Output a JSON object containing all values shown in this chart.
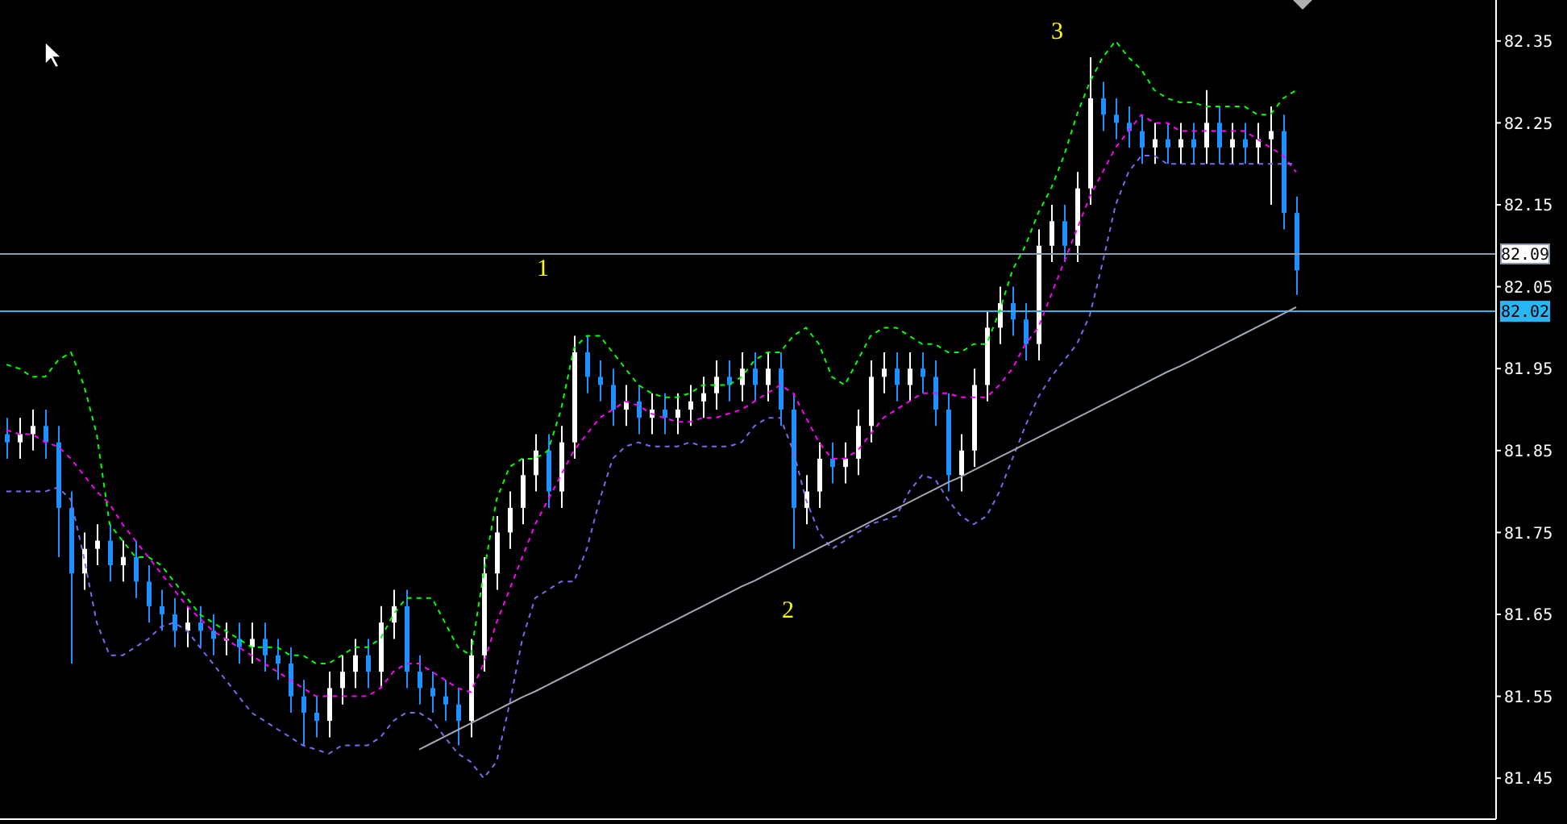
{
  "chart_data": {
    "type": "candlestick",
    "categories": [
      null,
      null,
      null,
      null,
      null,
      null,
      null,
      null,
      null,
      null,
      null,
      null,
      null,
      null,
      null,
      null,
      null,
      null,
      null,
      null,
      null,
      null,
      null,
      null,
      null,
      null,
      null,
      null,
      null,
      null,
      null,
      null,
      null,
      null,
      null,
      null,
      null,
      null,
      null,
      null,
      null,
      null,
      null,
      null,
      null,
      null,
      null,
      null,
      null,
      null,
      null,
      null,
      null,
      null,
      null,
      null,
      null,
      null,
      null,
      null,
      null,
      null,
      null,
      null,
      null,
      null,
      null,
      null,
      null,
      null,
      null,
      null,
      null,
      null,
      null,
      null,
      null,
      null,
      null,
      null,
      null,
      null,
      null,
      null,
      null,
      null,
      null,
      null,
      null,
      null,
      null,
      null,
      null,
      null,
      null,
      null,
      null,
      null,
      null,
      null,
      null
    ],
    "ohlc": [
      [
        81.87,
        81.89,
        81.84,
        81.86
      ],
      [
        81.86,
        81.89,
        81.84,
        81.87
      ],
      [
        81.87,
        81.9,
        81.85,
        81.88
      ],
      [
        81.88,
        81.9,
        81.84,
        81.86
      ],
      [
        81.86,
        81.88,
        81.72,
        81.78
      ],
      [
        81.78,
        81.8,
        81.59,
        81.7
      ],
      [
        81.7,
        81.75,
        81.68,
        81.73
      ],
      [
        81.73,
        81.76,
        81.71,
        81.74
      ],
      [
        81.74,
        81.76,
        81.69,
        81.71
      ],
      [
        81.71,
        81.74,
        81.69,
        81.72
      ],
      [
        81.72,
        81.74,
        81.67,
        81.69
      ],
      [
        81.69,
        81.71,
        81.64,
        81.66
      ],
      [
        81.66,
        81.68,
        81.63,
        81.65
      ],
      [
        81.65,
        81.67,
        81.61,
        81.63
      ],
      [
        81.63,
        81.66,
        81.61,
        81.64
      ],
      [
        81.64,
        81.66,
        81.61,
        81.63
      ],
      [
        81.63,
        81.65,
        81.6,
        81.62
      ],
      [
        81.62,
        81.64,
        81.6,
        81.62
      ],
      [
        81.62,
        81.64,
        81.59,
        81.61
      ],
      [
        81.61,
        81.64,
        81.59,
        81.62
      ],
      [
        81.62,
        81.64,
        81.58,
        81.6
      ],
      [
        81.6,
        81.62,
        81.57,
        81.59
      ],
      [
        81.59,
        81.61,
        81.53,
        81.55
      ],
      [
        81.55,
        81.57,
        81.49,
        81.53
      ],
      [
        81.53,
        81.55,
        81.5,
        81.52
      ],
      [
        81.52,
        81.58,
        81.5,
        81.56
      ],
      [
        81.56,
        81.6,
        81.54,
        81.58
      ],
      [
        81.58,
        81.62,
        81.56,
        81.6
      ],
      [
        81.6,
        81.62,
        81.56,
        81.58
      ],
      [
        81.58,
        81.66,
        81.56,
        81.64
      ],
      [
        81.64,
        81.68,
        81.62,
        81.66
      ],
      [
        81.66,
        81.68,
        81.56,
        81.58
      ],
      [
        81.58,
        81.6,
        81.54,
        81.56
      ],
      [
        81.56,
        81.58,
        81.53,
        81.55
      ],
      [
        81.55,
        81.57,
        81.52,
        81.54
      ],
      [
        81.54,
        81.56,
        81.49,
        81.52
      ],
      [
        81.52,
        81.62,
        81.5,
        81.6
      ],
      [
        81.6,
        81.72,
        81.58,
        81.7
      ],
      [
        81.7,
        81.77,
        81.68,
        81.75
      ],
      [
        81.75,
        81.8,
        81.73,
        81.78
      ],
      [
        81.78,
        81.84,
        81.76,
        81.82
      ],
      [
        81.82,
        81.87,
        81.8,
        81.85
      ],
      [
        81.85,
        81.87,
        81.78,
        81.8
      ],
      [
        81.8,
        81.88,
        81.78,
        81.86
      ],
      [
        81.86,
        81.99,
        81.84,
        81.97
      ],
      [
        81.97,
        81.99,
        81.92,
        81.94
      ],
      [
        81.94,
        81.96,
        81.91,
        81.93
      ],
      [
        81.93,
        81.95,
        81.88,
        81.9
      ],
      [
        81.9,
        81.93,
        81.88,
        81.91
      ],
      [
        81.91,
        81.93,
        81.87,
        81.89
      ],
      [
        81.89,
        81.92,
        81.87,
        81.9
      ],
      [
        81.9,
        81.92,
        81.87,
        81.89
      ],
      [
        81.89,
        81.92,
        81.87,
        81.9
      ],
      [
        81.9,
        81.93,
        81.88,
        81.91
      ],
      [
        81.91,
        81.94,
        81.89,
        81.92
      ],
      [
        81.92,
        81.96,
        81.9,
        81.94
      ],
      [
        81.94,
        81.96,
        81.91,
        81.93
      ],
      [
        81.93,
        81.97,
        81.91,
        81.95
      ],
      [
        81.95,
        81.97,
        81.91,
        81.93
      ],
      [
        81.93,
        81.97,
        81.91,
        81.95
      ],
      [
        81.95,
        81.97,
        81.88,
        81.9
      ],
      [
        81.9,
        81.92,
        81.73,
        81.78
      ],
      [
        81.78,
        81.82,
        81.76,
        81.8
      ],
      [
        81.8,
        81.86,
        81.78,
        81.84
      ],
      [
        81.84,
        81.86,
        81.81,
        81.83
      ],
      [
        81.83,
        81.86,
        81.81,
        81.84
      ],
      [
        81.84,
        81.9,
        81.82,
        81.88
      ],
      [
        81.88,
        81.96,
        81.86,
        81.94
      ],
      [
        81.94,
        81.97,
        81.92,
        81.95
      ],
      [
        81.95,
        81.97,
        81.91,
        81.93
      ],
      [
        81.93,
        81.97,
        81.91,
        81.95
      ],
      [
        81.95,
        81.97,
        81.92,
        81.94
      ],
      [
        81.94,
        81.96,
        81.88,
        81.9
      ],
      [
        81.9,
        81.92,
        81.8,
        81.82
      ],
      [
        81.82,
        81.87,
        81.8,
        81.85
      ],
      [
        81.85,
        81.95,
        81.83,
        81.93
      ],
      [
        81.93,
        82.02,
        81.91,
        82.0
      ],
      [
        82.0,
        82.05,
        81.98,
        82.03
      ],
      [
        82.03,
        82.05,
        81.99,
        82.01
      ],
      [
        82.01,
        82.03,
        81.96,
        81.98
      ],
      [
        81.98,
        82.12,
        81.96,
        82.1
      ],
      [
        82.1,
        82.15,
        82.08,
        82.13
      ],
      [
        82.13,
        82.15,
        82.08,
        82.1
      ],
      [
        82.1,
        82.19,
        82.08,
        82.17
      ],
      [
        82.17,
        82.33,
        82.15,
        82.28
      ],
      [
        82.28,
        82.3,
        82.24,
        82.26
      ],
      [
        82.26,
        82.28,
        82.23,
        82.25
      ],
      [
        82.25,
        82.27,
        82.22,
        82.24
      ],
      [
        82.24,
        82.26,
        82.2,
        82.22
      ],
      [
        82.22,
        82.25,
        82.2,
        82.23
      ],
      [
        82.23,
        82.25,
        82.2,
        82.22
      ],
      [
        82.22,
        82.25,
        82.2,
        82.23
      ],
      [
        82.23,
        82.25,
        82.2,
        82.22
      ],
      [
        82.22,
        82.29,
        82.2,
        82.25
      ],
      [
        82.25,
        82.27,
        82.2,
        82.22
      ],
      [
        82.22,
        82.25,
        82.2,
        82.23
      ],
      [
        82.23,
        82.25,
        82.2,
        82.22
      ],
      [
        82.22,
        82.25,
        82.2,
        82.23
      ],
      [
        82.23,
        82.27,
        82.15,
        82.24
      ],
      [
        82.24,
        82.26,
        82.12,
        82.14
      ],
      [
        82.14,
        82.16,
        82.04,
        82.07
      ]
    ],
    "series": [
      {
        "type": "line",
        "color": "#00ff00",
        "line_style": "dashed",
        "values": [
          81.955,
          81.95,
          81.94,
          81.94,
          81.96,
          81.97,
          81.93,
          81.87,
          81.76,
          81.74,
          81.72,
          81.72,
          81.71,
          81.69,
          81.67,
          81.65,
          81.64,
          81.63,
          81.62,
          81.61,
          81.61,
          81.61,
          81.6,
          81.6,
          81.59,
          81.59,
          81.6,
          81.61,
          81.61,
          81.62,
          81.65,
          81.67,
          81.67,
          81.67,
          81.64,
          81.61,
          81.6,
          81.7,
          81.79,
          81.83,
          81.84,
          81.84,
          81.85,
          81.9,
          81.975,
          81.99,
          81.99,
          81.97,
          81.95,
          81.93,
          81.92,
          81.915,
          81.915,
          81.92,
          81.93,
          81.93,
          81.93,
          81.94,
          81.96,
          81.97,
          81.97,
          81.99,
          82.0,
          81.98,
          81.94,
          81.93,
          81.96,
          81.99,
          82.0,
          82.0,
          81.99,
          81.98,
          81.98,
          81.97,
          81.97,
          81.98,
          81.98,
          82.02,
          82.07,
          82.1,
          82.14,
          82.17,
          82.21,
          82.26,
          82.3,
          82.33,
          82.35,
          82.33,
          82.315,
          82.29,
          82.28,
          82.275,
          82.275,
          82.27,
          82.27,
          82.27,
          82.27,
          82.26,
          82.26,
          82.28,
          82.29
        ]
      },
      {
        "type": "line",
        "color": "#ff00ff",
        "line_style": "dashed",
        "values": [
          81.875,
          81.87,
          81.87,
          81.86,
          81.855,
          81.84,
          81.82,
          81.8,
          81.785,
          81.76,
          81.74,
          81.72,
          81.7,
          81.68,
          81.66,
          81.645,
          81.63,
          81.62,
          81.61,
          81.6,
          81.59,
          81.58,
          81.57,
          81.56,
          81.55,
          81.55,
          81.55,
          81.55,
          81.55,
          81.56,
          81.58,
          81.59,
          81.59,
          81.58,
          81.57,
          81.56,
          81.555,
          81.59,
          81.64,
          81.68,
          81.72,
          81.76,
          81.79,
          81.82,
          81.85,
          81.87,
          81.89,
          81.9,
          81.91,
          81.905,
          81.895,
          81.89,
          81.885,
          81.885,
          81.89,
          81.89,
          81.895,
          81.9,
          81.91,
          81.92,
          81.93,
          81.92,
          81.89,
          81.86,
          81.84,
          81.84,
          81.85,
          81.87,
          81.89,
          81.9,
          81.91,
          81.92,
          81.92,
          81.92,
          81.915,
          81.915,
          81.915,
          81.93,
          81.95,
          81.98,
          82.0,
          82.04,
          82.08,
          82.12,
          82.16,
          82.19,
          82.22,
          82.24,
          82.26,
          82.25,
          82.25,
          82.24,
          82.24,
          82.24,
          82.24,
          82.24,
          82.24,
          82.23,
          82.22,
          82.21,
          82.19
        ]
      },
      {
        "type": "line",
        "color": "#7b68ee",
        "line_style": "dashed",
        "values": [
          81.8,
          81.8,
          81.8,
          81.8,
          81.805,
          81.79,
          81.72,
          81.64,
          81.6,
          81.6,
          81.61,
          81.62,
          81.635,
          81.64,
          81.63,
          81.61,
          81.59,
          81.57,
          81.55,
          81.53,
          81.52,
          81.51,
          81.5,
          81.49,
          81.485,
          81.48,
          81.49,
          81.49,
          81.49,
          81.5,
          81.52,
          81.53,
          81.53,
          81.52,
          81.5,
          81.48,
          81.47,
          81.45,
          81.47,
          81.54,
          81.62,
          81.67,
          81.68,
          81.69,
          81.69,
          81.73,
          81.79,
          81.84,
          81.855,
          81.86,
          81.855,
          81.855,
          81.855,
          81.86,
          81.855,
          81.855,
          81.855,
          81.86,
          81.88,
          81.89,
          81.89,
          81.85,
          81.79,
          81.75,
          81.73,
          81.74,
          81.75,
          81.76,
          81.765,
          81.77,
          81.8,
          81.82,
          81.815,
          81.79,
          81.77,
          81.76,
          81.77,
          81.8,
          81.84,
          81.88,
          81.915,
          81.94,
          81.96,
          81.98,
          82.015,
          82.08,
          82.15,
          82.19,
          82.21,
          82.21,
          82.2,
          82.2,
          82.2,
          82.2,
          82.2,
          82.2,
          82.2,
          82.2,
          82.2,
          82.2,
          82.2
        ]
      },
      {
        "type": "line",
        "color": "#a0a8b8",
        "line_style": "solid",
        "values": [
          null,
          null,
          null,
          null,
          null,
          null,
          null,
          null,
          null,
          null,
          null,
          null,
          null,
          null,
          null,
          null,
          null,
          null,
          null,
          null,
          null,
          null,
          null,
          null,
          null,
          null,
          null,
          null,
          null,
          null,
          null,
          null,
          81.485,
          81.493,
          81.501,
          81.509,
          81.517,
          81.525,
          81.533,
          81.541,
          81.549,
          81.556,
          81.564,
          81.572,
          81.58,
          81.588,
          81.596,
          81.604,
          81.612,
          81.62,
          81.628,
          81.636,
          81.644,
          81.652,
          81.66,
          81.668,
          81.676,
          81.684,
          81.691,
          81.699,
          81.707,
          81.715,
          81.723,
          81.731,
          81.739,
          81.747,
          81.755,
          81.763,
          81.771,
          81.779,
          81.787,
          81.795,
          81.803,
          81.811,
          81.818,
          81.826,
          81.834,
          81.842,
          81.85,
          81.858,
          81.866,
          81.874,
          81.882,
          81.89,
          81.898,
          81.906,
          81.914,
          81.922,
          81.93,
          81.938,
          81.946,
          81.953,
          81.961,
          81.969,
          81.977,
          81.985,
          81.993,
          82.001,
          82.009,
          82.017,
          82.025
        ]
      }
    ],
    "ylim": [
      81.4,
      82.4
    ],
    "yticks": [
      81.45,
      81.55,
      81.65,
      81.75,
      81.85,
      81.95,
      82.05,
      82.15,
      82.25,
      82.35
    ],
    "tick_labels": "y",
    "marker": "none",
    "ref_lines": [
      {
        "axis": "y",
        "value": 82.09,
        "label": "82.09",
        "color": "#8c9bb0"
      },
      {
        "axis": "y",
        "value": 82.02,
        "label": "82.02",
        "color": "#29b6f6"
      }
    ],
    "colors": [
      "#1e90ff",
      "#ffffff",
      "#ffffff",
      "#1e90ff",
      "#1e90ff",
      "#1e90ff",
      "#ffffff",
      "#ffffff",
      "#1e90ff",
      "#ffffff",
      "#1e90ff",
      "#1e90ff",
      "#1e90ff",
      "#1e90ff",
      "#ffffff",
      "#1e90ff",
      "#1e90ff",
      "#ffffff",
      "#1e90ff",
      "#ffffff",
      "#1e90ff",
      "#1e90ff",
      "#1e90ff",
      "#1e90ff",
      "#1e90ff",
      "#ffffff",
      "#ffffff",
      "#ffffff",
      "#1e90ff",
      "#ffffff",
      "#ffffff",
      "#1e90ff",
      "#1e90ff",
      "#1e90ff",
      "#1e90ff",
      "#1e90ff",
      "#ffffff",
      "#ffffff",
      "#ffffff",
      "#ffffff",
      "#ffffff",
      "#ffffff",
      "#1e90ff",
      "#ffffff",
      "#ffffff",
      "#1e90ff",
      "#1e90ff",
      "#1e90ff",
      "#ffffff",
      "#1e90ff",
      "#ffffff",
      "#1e90ff",
      "#ffffff",
      "#ffffff",
      "#ffffff",
      "#ffffff",
      "#1e90ff",
      "#ffffff",
      "#1e90ff",
      "#ffffff",
      "#1e90ff",
      "#1e90ff",
      "#ffffff",
      "#ffffff",
      "#1e90ff",
      "#ffffff",
      "#ffffff",
      "#ffffff",
      "#ffffff",
      "#1e90ff",
      "#ffffff",
      "#1e90ff",
      "#1e90ff",
      "#1e90ff",
      "#ffffff",
      "#ffffff",
      "#ffffff",
      "#ffffff",
      "#1e90ff",
      "#1e90ff",
      "#ffffff",
      "#ffffff",
      "#1e90ff",
      "#ffffff",
      "#ffffff",
      "#1e90ff",
      "#1e90ff",
      "#1e90ff",
      "#1e90ff",
      "#ffffff",
      "#1e90ff",
      "#ffffff",
      "#1e90ff",
      "#ffffff",
      "#1e90ff",
      "#ffffff",
      "#1e90ff",
      "#ffffff",
      "#ffffff",
      "#1e90ff",
      "#1e90ff"
    ],
    "annotations": [
      "1",
      "2",
      "3"
    ]
  }
}
